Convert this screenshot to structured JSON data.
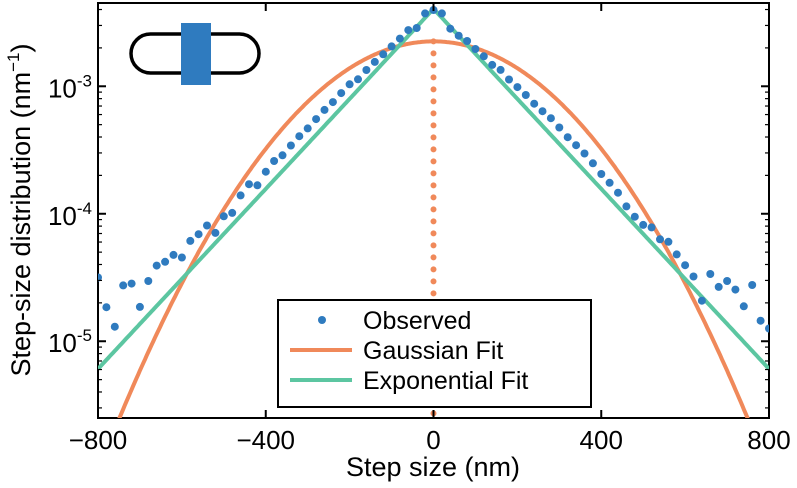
{
  "chart_data": {
    "type": "scatter",
    "xlabel": "Step size (nm)",
    "ylabel_main": "Step-size distribution (nm",
    "ylabel_sup": "−1",
    "ylabel_close": ")",
    "xlim": [
      -800,
      800
    ],
    "ylim": [
      2.5e-06,
      0.0045
    ],
    "yscale": "log",
    "grid": false,
    "xticks": [
      -800,
      -400,
      0,
      400,
      800
    ],
    "xtick_labels": [
      "−800",
      "−400",
      "0",
      "400",
      "800"
    ],
    "yticks": [
      {
        "value": 0.001,
        "base": "10",
        "exp": "-3"
      },
      {
        "value": 0.0001,
        "base": "10",
        "exp": "-4"
      },
      {
        "value": 1e-05,
        "base": "10",
        "exp": "-5"
      }
    ],
    "legend_position": "bottom-center",
    "series": [
      {
        "name": "Observed",
        "kind": "points",
        "color": "#2f7bbf",
        "points": [
          [
            -800,
            3.16e-05
          ],
          [
            -780,
            1.85e-05
          ],
          [
            -760,
            1.3e-05
          ],
          [
            -740,
            2.74e-05
          ],
          [
            -720,
            2.83e-05
          ],
          [
            -700,
            1.86e-05
          ],
          [
            -680,
            2.97e-05
          ],
          [
            -660,
            3.92e-05
          ],
          [
            -640,
            4.2e-05
          ],
          [
            -620,
            4.76e-05
          ],
          [
            -600,
            4.54e-05
          ],
          [
            -580,
            6.13e-05
          ],
          [
            -560,
            6.91e-05
          ],
          [
            -540,
            8.09e-05
          ],
          [
            -520,
            7.08e-05
          ],
          [
            -500,
            9.56e-05
          ],
          [
            -480,
            0.0001015
          ],
          [
            -460,
            0.0001394
          ],
          [
            -440,
            0.0001707
          ],
          [
            -420,
            0.0001672
          ],
          [
            -400,
            0.0002138
          ],
          [
            -380,
            0.0002594
          ],
          [
            -360,
            0.0002872
          ],
          [
            -340,
            0.0003434
          ],
          [
            -320,
            0.0004056
          ],
          [
            -300,
            0.0004672
          ],
          [
            -280,
            0.0005527
          ],
          [
            -260,
            0.0006524
          ],
          [
            -240,
            0.0007509
          ],
          [
            -220,
            0.0008836
          ],
          [
            -200,
            0.001036
          ],
          [
            -180,
            0.001135
          ],
          [
            -160,
            0.001342
          ],
          [
            -140,
            0.001552
          ],
          [
            -120,
            0.001782
          ],
          [
            -100,
            0.002056
          ],
          [
            -80,
            0.002364
          ],
          [
            -60,
            0.002756
          ],
          [
            -40,
            0.002864
          ],
          [
            -20,
            0.003726
          ],
          [
            0,
            0.003964
          ],
          [
            20,
            0.003731
          ],
          [
            40,
            0.002828
          ],
          [
            60,
            0.002495
          ],
          [
            80,
            0.002265
          ],
          [
            100,
            0.001962
          ],
          [
            120,
            0.001719
          ],
          [
            140,
            0.001471
          ],
          [
            160,
            0.001343
          ],
          [
            180,
            0.00113
          ],
          [
            200,
            0.000985
          ],
          [
            220,
            0.0008536
          ],
          [
            240,
            0.0007298
          ],
          [
            260,
            0.0006373
          ],
          [
            280,
            0.000562
          ],
          [
            300,
            0.0004747
          ],
          [
            320,
            0.0003983
          ],
          [
            340,
            0.0003451
          ],
          [
            360,
            0.0002971
          ],
          [
            380,
            0.0002489
          ],
          [
            400,
            0.0002051
          ],
          [
            420,
            0.0001748
          ],
          [
            440,
            0.0001463
          ],
          [
            460,
            0.0001142
          ],
          [
            480,
            9.48e-05
          ],
          [
            500,
            8.18e-05
          ],
          [
            520,
            7.81e-05
          ],
          [
            540,
            6.31e-05
          ],
          [
            560,
            6.03e-05
          ],
          [
            580,
            4.8e-05
          ],
          [
            600,
            3.95e-05
          ],
          [
            620,
            3.22e-05
          ],
          [
            640,
            2.08e-05
          ],
          [
            660,
            3.37e-05
          ],
          [
            680,
            2.67e-05
          ],
          [
            700,
            2.97e-05
          ],
          [
            720,
            2.54e-05
          ],
          [
            740,
            1.88e-05
          ],
          [
            760,
            2.76e-05
          ],
          [
            780,
            1.45e-05
          ],
          [
            800,
            1.26e-05
          ]
        ]
      },
      {
        "name": "Gaussian Fit",
        "kind": "gaussian",
        "color": "#f0895a",
        "peak": 0.00225,
        "sigma": 203
      },
      {
        "name": "Exponential Fit",
        "kind": "laplace",
        "color": "#5cc6a1",
        "peak": 0.00405,
        "scale": 123
      }
    ],
    "zero_line": {
      "x": 0,
      "color": "#f0895a",
      "style": "dotted"
    }
  },
  "inset": {
    "name": "cell-schematic",
    "outline_color": "#000000",
    "band_color": "#2f7bbf"
  }
}
